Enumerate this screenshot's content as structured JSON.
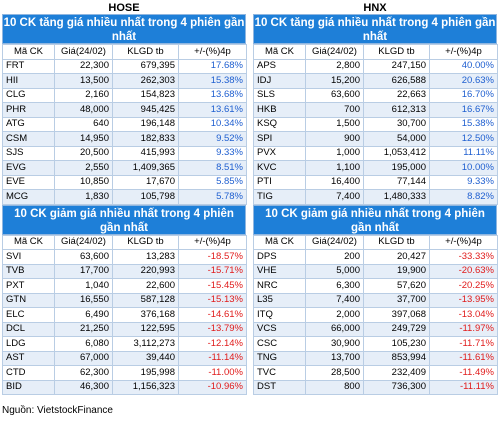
{
  "hose": {
    "exchange": "HOSE",
    "gainers_title": "10 CK tăng giá nhiều nhất trong 4 phiên gần nhất",
    "losers_title": "10 CK giảm giá nhiều nhất trong 4 phiên gần nhất",
    "columns": [
      "Mã CK",
      "Giá(24/02)",
      "KLGD tb",
      "+/-(%)4p"
    ],
    "gainers": [
      [
        "FRT",
        "22,300",
        "679,395",
        "17.68%"
      ],
      [
        "HII",
        "13,500",
        "262,303",
        "15.38%"
      ],
      [
        "CLG",
        "2,160",
        "154,823",
        "13.68%"
      ],
      [
        "PHR",
        "48,000",
        "945,425",
        "13.61%"
      ],
      [
        "ATG",
        "640",
        "196,148",
        "10.34%"
      ],
      [
        "CSM",
        "14,950",
        "182,833",
        "9.52%"
      ],
      [
        "SJS",
        "20,500",
        "415,993",
        "9.33%"
      ],
      [
        "EVG",
        "2,550",
        "1,409,365",
        "8.51%"
      ],
      [
        "EVE",
        "10,850",
        "17,670",
        "5.85%"
      ],
      [
        "MCG",
        "1,830",
        "105,798",
        "5.78%"
      ]
    ],
    "losers": [
      [
        "SVI",
        "63,600",
        "13,283",
        "-18.57%"
      ],
      [
        "TVB",
        "17,700",
        "220,993",
        "-15.71%"
      ],
      [
        "PXT",
        "1,040",
        "22,600",
        "-15.45%"
      ],
      [
        "GTN",
        "16,550",
        "587,128",
        "-15.13%"
      ],
      [
        "ELC",
        "6,490",
        "376,168",
        "-14.61%"
      ],
      [
        "DCL",
        "21,250",
        "122,595",
        "-13.79%"
      ],
      [
        "LDG",
        "6,080",
        "3,112,273",
        "-12.14%"
      ],
      [
        "AST",
        "67,000",
        "39,440",
        "-11.14%"
      ],
      [
        "CTD",
        "62,300",
        "195,998",
        "-11.00%"
      ],
      [
        "BID",
        "46,300",
        "1,156,323",
        "-10.96%"
      ]
    ]
  },
  "hnx": {
    "exchange": "HNX",
    "gainers_title": "10 CK tăng giá nhiều nhất trong 4 phiên gần nhất",
    "losers_title": "10 CK giảm giá nhiều nhất trong 4 phiên gần nhất",
    "columns": [
      "Mã CK",
      "Giá(24/02)",
      "KLGD tb",
      "+/-(%)4p"
    ],
    "gainers": [
      [
        "APS",
        "2,800",
        "247,150",
        "40.00%"
      ],
      [
        "IDJ",
        "15,200",
        "626,588",
        "20.63%"
      ],
      [
        "SLS",
        "63,600",
        "22,663",
        "16.70%"
      ],
      [
        "HKB",
        "700",
        "612,313",
        "16.67%"
      ],
      [
        "KSQ",
        "1,500",
        "30,700",
        "15.38%"
      ],
      [
        "SPI",
        "900",
        "54,000",
        "12.50%"
      ],
      [
        "PVX",
        "1,000",
        "1,053,412",
        "11.11%"
      ],
      [
        "KVC",
        "1,100",
        "195,000",
        "10.00%"
      ],
      [
        "PTI",
        "16,400",
        "77,144",
        "9.33%"
      ],
      [
        "TIG",
        "7,400",
        "1,480,333",
        "8.82%"
      ]
    ],
    "losers": [
      [
        "DPS",
        "200",
        "20,427",
        "-33.33%"
      ],
      [
        "VHE",
        "5,000",
        "19,900",
        "-20.63%"
      ],
      [
        "NRC",
        "6,300",
        "57,620",
        "-20.25%"
      ],
      [
        "L35",
        "7,400",
        "37,700",
        "-13.95%"
      ],
      [
        "ITQ",
        "2,000",
        "397,068",
        "-13.04%"
      ],
      [
        "VCS",
        "66,000",
        "249,729",
        "-11.97%"
      ],
      [
        "CSC",
        "30,900",
        "105,230",
        "-11.71%"
      ],
      [
        "TNG",
        "13,700",
        "853,994",
        "-11.61%"
      ],
      [
        "TVC",
        "28,500",
        "232,409",
        "-11.49%"
      ],
      [
        "DST",
        "800",
        "736,300",
        "-11.11%"
      ]
    ]
  },
  "source": "Nguồn: VietstockFinance",
  "colors": {
    "header_bg": "#1e7fd8",
    "up": "#1f5fd0",
    "down": "#e01b1b",
    "alt_row": "#e6eef8"
  }
}
